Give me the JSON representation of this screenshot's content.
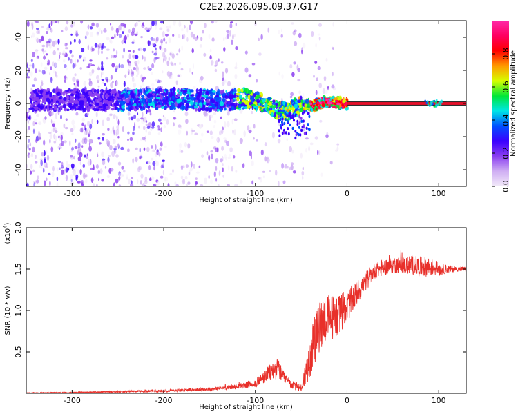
{
  "title": "C2E2.2026.095.09.37.G17",
  "chart_data": [
    {
      "type": "heatmap",
      "xlabel": "Height of straight line (km)",
      "ylabel": "Frequency (Hz)",
      "xlim": [
        -350,
        130
      ],
      "ylim": [
        -50,
        50
      ],
      "xticks": [
        -300,
        -200,
        -100,
        0,
        100
      ],
      "yticks": [
        -40,
        -20,
        0,
        20,
        40
      ],
      "colorbar": {
        "label": "Normalized spectral amplitude",
        "range": [
          0,
          1
        ],
        "ticks": [
          "0.0",
          "0.2",
          "0.4",
          "0.6",
          "0.8"
        ],
        "tick_values": [
          0.0,
          0.2,
          0.4,
          0.6,
          0.8
        ]
      },
      "centroid_track": {
        "x": [
          -320,
          -280,
          -240,
          -200,
          -160,
          -130,
          -110,
          -95,
          -85,
          -75,
          -65,
          -55,
          -45,
          -35,
          -25,
          -15,
          -5,
          0,
          130
        ],
        "y": [
          2,
          2,
          2,
          3,
          2,
          2,
          3,
          1,
          -1,
          -4,
          -5,
          -2,
          -1,
          -1,
          1,
          1,
          0,
          0,
          0
        ]
      }
    },
    {
      "type": "line",
      "xlabel": "Height of straight line (km)",
      "ylabel": "SNR (10 * v/v)",
      "yscale_label": "(x10",
      "yscale_exp": "4",
      "yscale_close": ")",
      "xlim": [
        -350,
        130
      ],
      "ylim": [
        0,
        2.0
      ],
      "xticks": [
        -300,
        -200,
        -100,
        0,
        100
      ],
      "yticks": [
        "0.5",
        "1.0",
        "1.5",
        "2.0"
      ],
      "ytick_values": [
        0.5,
        1.0,
        1.5,
        2.0
      ],
      "series": [
        {
          "name": "SNR",
          "color": "#e8302a",
          "envelope_x": [
            -350,
            -300,
            -250,
            -200,
            -150,
            -120,
            -100,
            -90,
            -80,
            -75,
            -70,
            -60,
            -50,
            -45,
            -40,
            -35,
            -30,
            -25,
            -20,
            -10,
            0,
            10,
            20,
            30,
            40,
            50,
            60,
            70,
            80,
            90,
            100,
            110,
            120,
            130
          ],
          "envelope_mean": [
            0.005,
            0.01,
            0.02,
            0.03,
            0.05,
            0.08,
            0.12,
            0.2,
            0.28,
            0.3,
            0.2,
            0.1,
            0.06,
            0.25,
            0.45,
            0.65,
            0.8,
            0.9,
            0.9,
            0.95,
            1.05,
            1.2,
            1.35,
            1.48,
            1.52,
            1.55,
            1.55,
            1.55,
            1.53,
            1.53,
            1.5,
            1.5,
            1.5,
            1.5
          ],
          "envelope_noise": [
            0.005,
            0.005,
            0.01,
            0.015,
            0.02,
            0.03,
            0.05,
            0.08,
            0.12,
            0.12,
            0.08,
            0.05,
            0.05,
            0.15,
            0.25,
            0.3,
            0.3,
            0.3,
            0.3,
            0.25,
            0.2,
            0.15,
            0.12,
            0.1,
            0.1,
            0.1,
            0.1,
            0.12,
            0.12,
            0.12,
            0.08,
            0.05,
            0.03,
            0.03
          ]
        }
      ]
    }
  ],
  "colors": {
    "line": "#e8302a",
    "track_core": "#e8102a",
    "track_edge": "#2f2f2f",
    "colormap": [
      "#f2eaf9",
      "#cfaef3",
      "#8a3df0",
      "#3a00ff",
      "#0050ff",
      "#00e6e6",
      "#00e639",
      "#d6ff00",
      "#ff9a00",
      "#ff0000",
      "#ff0060",
      "#ff2aa8"
    ]
  }
}
